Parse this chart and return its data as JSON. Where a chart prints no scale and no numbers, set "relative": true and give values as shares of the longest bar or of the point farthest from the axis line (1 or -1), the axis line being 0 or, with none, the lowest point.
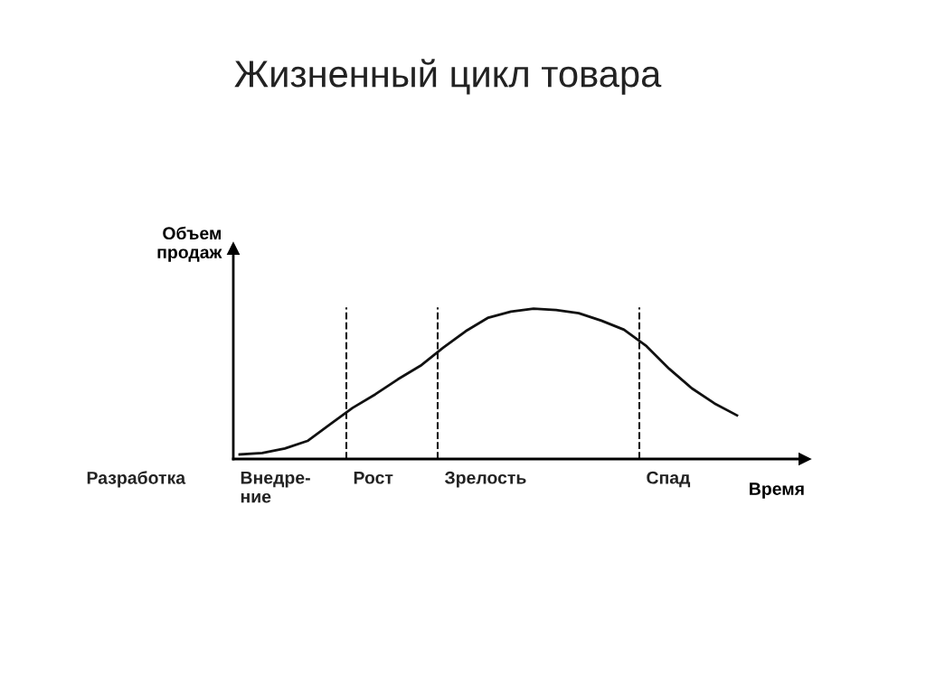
{
  "chart_data": {
    "type": "line",
    "title": "Жизненный цикл товара",
    "xlabel": "Время",
    "ylabel": "Объем\nпродаж",
    "relative": true,
    "categories": [
      null,
      null,
      null,
      null,
      null,
      null,
      null,
      null,
      null,
      null,
      null,
      null,
      null,
      null,
      null,
      null,
      null,
      null,
      null,
      null,
      null,
      null,
      null
    ],
    "series": [
      {
        "color": "#111111",
        "values": [
          0.03,
          0.04,
          0.07,
          0.12,
          0.23,
          0.34,
          0.43,
          0.53,
          0.62,
          0.74,
          0.85,
          0.94,
          0.98,
          1,
          0.99,
          0.97,
          0.92,
          0.86,
          0.75,
          0.6,
          0.47,
          0.37,
          0.29
        ]
      }
    ],
    "annotations": [
      "Разработка",
      "Внедре-\nние",
      "Рост",
      "Зрелость",
      "Спад"
    ],
    "legend": false,
    "marker": "none",
    "line_style": "solid"
  }
}
